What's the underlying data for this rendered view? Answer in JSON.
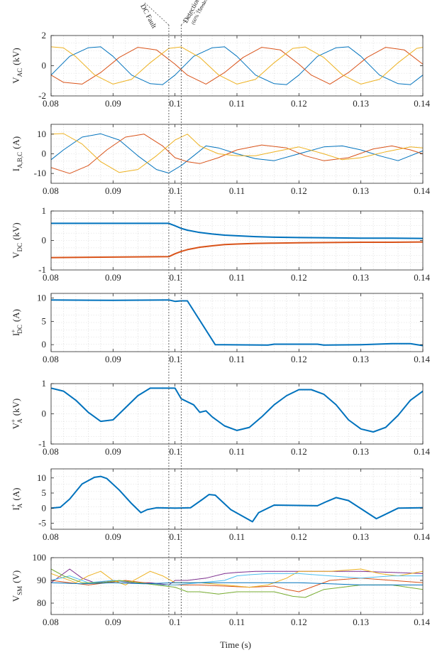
{
  "figure": {
    "xlabel": "Time (s)",
    "annotations": {
      "fault": "DC Fault",
      "detection": "Detection",
      "detection_note": "(60% Threshold)",
      "fault_time": 0.099,
      "detection_time": 0.101
    }
  },
  "colors": {
    "blue": "#0072BD",
    "orange": "#D95319",
    "yellow": "#EDB120",
    "purple": "#7E2F8E",
    "green": "#77AC30",
    "cyan": "#4DBEEE",
    "grid": "#d9d9d9",
    "axis": "#262626"
  },
  "chart_data": [
    {
      "type": "line",
      "id": "vac",
      "ylabel": "V",
      "ylabel_sub": "AC",
      "ylabel_unit": "(kV)",
      "xlim": [
        0.08,
        0.14
      ],
      "ylim": [
        -2,
        2
      ],
      "xticks": [
        0.08,
        0.09,
        0.1,
        0.11,
        0.12,
        0.13,
        0.14
      ],
      "xtick_labels": [
        "0.08",
        "0.09",
        "0.1",
        "0.11",
        "0.12",
        "0.13",
        "0.14"
      ],
      "yticks": [
        -2,
        0,
        2
      ],
      "ytick_labels": [
        "-2",
        "0",
        "2"
      ],
      "series": [
        {
          "color": "blue",
          "x": [
            0.08,
            0.083,
            0.086,
            0.088,
            0.09,
            0.093,
            0.096,
            0.098,
            0.1,
            0.103,
            0.106,
            0.108,
            0.11,
            0.113,
            0.116,
            0.118,
            0.12,
            0.123,
            0.126,
            0.128,
            0.13,
            0.133,
            0.136,
            0.138,
            0.14
          ],
          "y": [
            -0.62,
            0.62,
            1.19,
            1.25,
            0.62,
            -0.62,
            -1.19,
            -1.25,
            -0.62,
            0.62,
            1.19,
            1.25,
            0.62,
            -0.62,
            -1.19,
            -1.25,
            -0.62,
            0.62,
            1.19,
            1.25,
            0.62,
            -0.62,
            -1.19,
            -1.25,
            -0.62
          ]
        },
        {
          "color": "orange",
          "x": [
            0.08,
            0.082,
            0.085,
            0.088,
            0.091,
            0.094,
            0.097,
            0.1,
            0.102,
            0.105,
            0.108,
            0.111,
            0.114,
            0.117,
            0.12,
            0.122,
            0.125,
            0.128,
            0.131,
            0.134,
            0.137,
            0.14
          ],
          "y": [
            -0.62,
            -1.1,
            -1.22,
            -0.45,
            0.55,
            1.22,
            1.05,
            0.1,
            -0.62,
            -1.22,
            -0.45,
            0.55,
            1.22,
            1.05,
            0.1,
            -0.62,
            -1.22,
            -0.45,
            0.55,
            1.22,
            1.05,
            0.1
          ]
        },
        {
          "color": "yellow",
          "x": [
            0.08,
            0.082,
            0.084,
            0.087,
            0.09,
            0.093,
            0.096,
            0.099,
            0.101,
            0.104,
            0.107,
            0.11,
            0.113,
            0.116,
            0.119,
            0.121,
            0.124,
            0.127,
            0.13,
            0.133,
            0.136,
            0.139,
            0.14
          ],
          "y": [
            1.25,
            1.18,
            0.6,
            -0.6,
            -1.22,
            -0.9,
            0.2,
            1.15,
            1.24,
            0.55,
            -0.6,
            -1.22,
            -0.9,
            0.2,
            1.15,
            1.24,
            0.55,
            -0.6,
            -1.22,
            -0.9,
            0.2,
            1.15,
            1.22
          ]
        }
      ]
    },
    {
      "type": "line",
      "id": "iabc",
      "ylabel": "I",
      "ylabel_sub": "A,B,C",
      "ylabel_unit": "(A)",
      "xlim": [
        0.08,
        0.14
      ],
      "ylim": [
        -15,
        15
      ],
      "xticks": [
        0.08,
        0.09,
        0.1,
        0.11,
        0.12,
        0.13,
        0.14
      ],
      "xtick_labels": [
        "0.08",
        "0.09",
        "0.1",
        "0.11",
        "0.12",
        "0.13",
        "0.14"
      ],
      "yticks": [
        -10,
        0,
        10
      ],
      "ytick_labels": [
        "-10",
        "0",
        "10"
      ],
      "series": [
        {
          "color": "blue",
          "x": [
            0.08,
            0.082,
            0.085,
            0.088,
            0.091,
            0.094,
            0.097,
            0.099,
            0.101,
            0.103,
            0.105,
            0.107,
            0.11,
            0.113,
            0.116,
            0.12,
            0.124,
            0.127,
            0.13,
            0.133,
            0.136,
            0.14
          ],
          "y": [
            -3,
            2,
            8.5,
            10.2,
            7,
            -1,
            -8,
            -9.8,
            -6,
            -1,
            4,
            3,
            0,
            -2.5,
            -3.5,
            0,
            3.5,
            4,
            2,
            -1,
            -3.5,
            1.5
          ]
        },
        {
          "color": "orange",
          "x": [
            0.08,
            0.083,
            0.086,
            0.089,
            0.092,
            0.095,
            0.098,
            0.1,
            0.102,
            0.104,
            0.107,
            0.11,
            0.114,
            0.118,
            0.121,
            0.124,
            0.128,
            0.132,
            0.135,
            0.138,
            0.14
          ],
          "y": [
            -7,
            -10,
            -6,
            2,
            8.5,
            10,
            4,
            -2,
            -4,
            -5,
            -2,
            2,
            4.5,
            3,
            -1,
            -3.5,
            -2,
            2.5,
            4,
            2,
            0
          ]
        },
        {
          "color": "yellow",
          "x": [
            0.08,
            0.082,
            0.085,
            0.088,
            0.091,
            0.094,
            0.097,
            0.1,
            0.102,
            0.104,
            0.107,
            0.11,
            0.113,
            0.116,
            0.12,
            0.124,
            0.127,
            0.13,
            0.134,
            0.138,
            0.14
          ],
          "y": [
            10,
            10.3,
            5,
            -4,
            -9.5,
            -8,
            -1,
            7,
            10,
            4,
            0,
            -1,
            -1,
            1,
            3.5,
            0,
            -3,
            -2,
            1,
            3.5,
            3
          ]
        }
      ]
    },
    {
      "type": "line",
      "id": "vdc",
      "ylabel": "V",
      "ylabel_sub": "DC",
      "ylabel_unit": "(kV)",
      "xlim": [
        0.08,
        0.14
      ],
      "ylim": [
        -1,
        1
      ],
      "xticks": [
        0.08,
        0.09,
        0.1,
        0.11,
        0.12,
        0.13,
        0.14
      ],
      "xtick_labels": [
        "0.08",
        "0.09",
        "0.1",
        "0.11",
        "0.12",
        "0.13",
        "0.14"
      ],
      "yticks": [
        -1,
        0,
        1
      ],
      "ytick_labels": [
        "-1",
        "0",
        "1"
      ],
      "series": [
        {
          "color": "blue",
          "x": [
            0.08,
            0.099,
            0.1,
            0.101,
            0.102,
            0.104,
            0.106,
            0.108,
            0.11,
            0.113,
            0.116,
            0.12,
            0.125,
            0.13,
            0.135,
            0.14
          ],
          "y": [
            0.58,
            0.58,
            0.5,
            0.41,
            0.35,
            0.27,
            0.22,
            0.18,
            0.16,
            0.13,
            0.11,
            0.1,
            0.09,
            0.08,
            0.08,
            0.07
          ]
        },
        {
          "color": "orange",
          "x": [
            0.08,
            0.099,
            0.1,
            0.101,
            0.102,
            0.104,
            0.106,
            0.108,
            0.11,
            0.113,
            0.116,
            0.12,
            0.125,
            0.13,
            0.135,
            0.14
          ],
          "y": [
            -0.58,
            -0.55,
            -0.45,
            -0.37,
            -0.31,
            -0.23,
            -0.18,
            -0.14,
            -0.12,
            -0.1,
            -0.09,
            -0.08,
            -0.07,
            -0.06,
            -0.06,
            -0.05
          ]
        }
      ]
    },
    {
      "type": "line",
      "id": "idc",
      "ylabel": "I",
      "ylabel_sup": "+",
      "ylabel_sub": "DC",
      "ylabel_unit": "(A)",
      "xlim": [
        0.08,
        0.14
      ],
      "ylim": [
        -1.5,
        11
      ],
      "xticks": [
        0.08,
        0.09,
        0.1,
        0.11,
        0.12,
        0.13,
        0.14
      ],
      "xtick_labels": [
        "0.08",
        "0.09",
        "0.1",
        "0.11",
        "0.12",
        "0.13",
        "0.14"
      ],
      "yticks": [
        0,
        5,
        10
      ],
      "ytick_labels": [
        "0",
        "5",
        "10"
      ],
      "series": [
        {
          "color": "blue",
          "x": [
            0.08,
            0.09,
            0.099,
            0.1,
            0.101,
            0.102,
            0.1065,
            0.108,
            0.115,
            0.116,
            0.123,
            0.124,
            0.13,
            0.135,
            0.138,
            0.14
          ],
          "y": [
            9.6,
            9.5,
            9.6,
            9.3,
            9.4,
            9.4,
            0,
            0,
            -0.1,
            0.1,
            0.1,
            -0.1,
            0,
            0.2,
            0.2,
            -0.2
          ]
        }
      ]
    },
    {
      "type": "line",
      "id": "va",
      "ylabel": "V",
      "ylabel_sup": "+",
      "ylabel_sub": "A",
      "ylabel_unit": "(kV)",
      "xlim": [
        0.08,
        0.14
      ],
      "ylim": [
        -1,
        1
      ],
      "xticks": [
        0.08,
        0.09,
        0.1,
        0.11,
        0.12,
        0.13,
        0.14
      ],
      "xtick_labels": [
        "0.08",
        "0.09",
        "0.1",
        "0.11",
        "0.12",
        "0.13",
        "0.14"
      ],
      "yticks": [
        -1,
        0,
        1
      ],
      "ytick_labels": [
        "-1",
        "0",
        "1"
      ],
      "series": [
        {
          "color": "blue",
          "x": [
            0.08,
            0.082,
            0.084,
            0.086,
            0.088,
            0.09,
            0.092,
            0.094,
            0.096,
            0.099,
            0.1,
            0.101,
            0.103,
            0.104,
            0.105,
            0.106,
            0.108,
            0.11,
            0.112,
            0.114,
            0.116,
            0.118,
            0.12,
            0.122,
            0.124,
            0.126,
            0.128,
            0.13,
            0.132,
            0.134,
            0.136,
            0.138,
            0.14
          ],
          "y": [
            0.85,
            0.75,
            0.45,
            0.05,
            -0.25,
            -0.2,
            0.2,
            0.6,
            0.85,
            0.85,
            0.85,
            0.5,
            0.3,
            0.05,
            0.1,
            -0.1,
            -0.4,
            -0.55,
            -0.45,
            -0.1,
            0.3,
            0.6,
            0.8,
            0.8,
            0.65,
            0.3,
            -0.2,
            -0.5,
            -0.6,
            -0.45,
            -0.05,
            0.45,
            0.75
          ]
        }
      ]
    },
    {
      "type": "line",
      "id": "ia",
      "ylabel": "I",
      "ylabel_sup": "+",
      "ylabel_sub": "A",
      "ylabel_unit": "(A)",
      "xlim": [
        0.08,
        0.14
      ],
      "ylim": [
        -7,
        13
      ],
      "xticks": [
        0.08,
        0.09,
        0.1,
        0.11,
        0.12,
        0.13,
        0.14
      ],
      "xtick_labels": [
        "0.08",
        "0.09",
        "0.1",
        "0.11",
        "0.12",
        "0.13",
        "0.14"
      ],
      "yticks": [
        -5,
        0,
        5,
        10
      ],
      "ytick_labels": [
        "-5",
        "0",
        "5",
        "10"
      ],
      "series": [
        {
          "color": "blue",
          "x": [
            0.08,
            0.0815,
            0.083,
            0.085,
            0.087,
            0.088,
            0.089,
            0.091,
            0.093,
            0.0945,
            0.0955,
            0.097,
            0.1,
            0.1025,
            0.1045,
            0.1055,
            0.1065,
            0.109,
            0.1125,
            0.1135,
            0.116,
            0.123,
            0.1245,
            0.126,
            0.128,
            0.131,
            0.1325,
            0.134,
            0.136,
            0.14
          ],
          "y": [
            0,
            0.3,
            3,
            8,
            10.2,
            10.5,
            9.8,
            6,
            1.5,
            -1.5,
            -0.5,
            0.1,
            0,
            0.1,
            3,
            4.5,
            4.3,
            -0.5,
            -4.5,
            -1.5,
            1,
            0.8,
            2.2,
            3.5,
            2.5,
            -1.5,
            -3.5,
            -2,
            0,
            0.1
          ]
        }
      ]
    },
    {
      "type": "line",
      "id": "vsm",
      "ylabel": "V",
      "ylabel_sub": "SM",
      "ylabel_unit": "(V)",
      "xlim": [
        0.08,
        0.14
      ],
      "ylim": [
        75,
        100
      ],
      "xticks": [
        0.08,
        0.09,
        0.1,
        0.11,
        0.12,
        0.13,
        0.14
      ],
      "xtick_labels": [
        "0.08",
        "0.09",
        "0.1",
        "0.11",
        "0.12",
        "0.13",
        "0.14"
      ],
      "yticks": [
        80,
        90,
        100
      ],
      "ytick_labels": [
        "80",
        "90",
        "100"
      ],
      "series": [
        {
          "color": "purple",
          "x": [
            0.08,
            0.082,
            0.083,
            0.085,
            0.087,
            0.09,
            0.093,
            0.096,
            0.099,
            0.1,
            0.102,
            0.105,
            0.108,
            0.11,
            0.113,
            0.116,
            0.12,
            0.125,
            0.13,
            0.135,
            0.14
          ],
          "y": [
            89,
            93,
            95,
            91,
            89,
            90,
            89,
            89,
            88,
            90,
            90,
            91,
            93,
            93.5,
            94,
            94,
            94,
            94,
            94,
            93.5,
            93
          ]
        },
        {
          "color": "orange",
          "x": [
            0.08,
            0.083,
            0.086,
            0.089,
            0.092,
            0.095,
            0.098,
            0.1,
            0.104,
            0.108,
            0.112,
            0.116,
            0.118,
            0.12,
            0.122,
            0.125,
            0.13,
            0.135,
            0.14
          ],
          "y": [
            90,
            89,
            88,
            89,
            90,
            89,
            88,
            88,
            88,
            87.5,
            87,
            87.5,
            86,
            85,
            87,
            90,
            91,
            90,
            89
          ]
        },
        {
          "color": "yellow",
          "x": [
            0.08,
            0.082,
            0.084,
            0.086,
            0.088,
            0.09,
            0.092,
            0.094,
            0.096,
            0.098,
            0.1,
            0.104,
            0.108,
            0.112,
            0.115,
            0.118,
            0.12,
            0.125,
            0.13,
            0.133,
            0.136,
            0.14
          ],
          "y": [
            93,
            91,
            89,
            92,
            94,
            90,
            88,
            91,
            94,
            92,
            89,
            89,
            88,
            87,
            88,
            91,
            94,
            94,
            95,
            93,
            92,
            94
          ]
        },
        {
          "color": "cyan",
          "x": [
            0.08,
            0.083,
            0.086,
            0.09,
            0.094,
            0.098,
            0.1,
            0.104,
            0.108,
            0.11,
            0.112,
            0.115,
            0.118,
            0.12,
            0.125,
            0.13,
            0.135,
            0.14
          ],
          "y": [
            90,
            92,
            89,
            90,
            89,
            88,
            88,
            89,
            90,
            92,
            92.5,
            93,
            93,
            93,
            92,
            91,
            92,
            92
          ]
        },
        {
          "color": "green",
          "x": [
            0.08,
            0.082,
            0.085,
            0.088,
            0.091,
            0.094,
            0.097,
            0.1,
            0.102,
            0.104,
            0.107,
            0.11,
            0.113,
            0.116,
            0.119,
            0.121,
            0.124,
            0.127,
            0.13,
            0.135,
            0.14
          ],
          "y": [
            95,
            92,
            89,
            89,
            90,
            89,
            88,
            87,
            85,
            85,
            84,
            85,
            85,
            85,
            83,
            82.5,
            86,
            87,
            88,
            88,
            86
          ]
        },
        {
          "color": "blue",
          "x": [
            0.08,
            0.085,
            0.09,
            0.095,
            0.1,
            0.105,
            0.11,
            0.115,
            0.12,
            0.125,
            0.13,
            0.135,
            0.14
          ],
          "y": [
            89,
            88.5,
            89,
            88.5,
            89,
            89,
            89,
            89,
            89,
            88.5,
            88,
            88,
            88
          ]
        }
      ]
    }
  ]
}
